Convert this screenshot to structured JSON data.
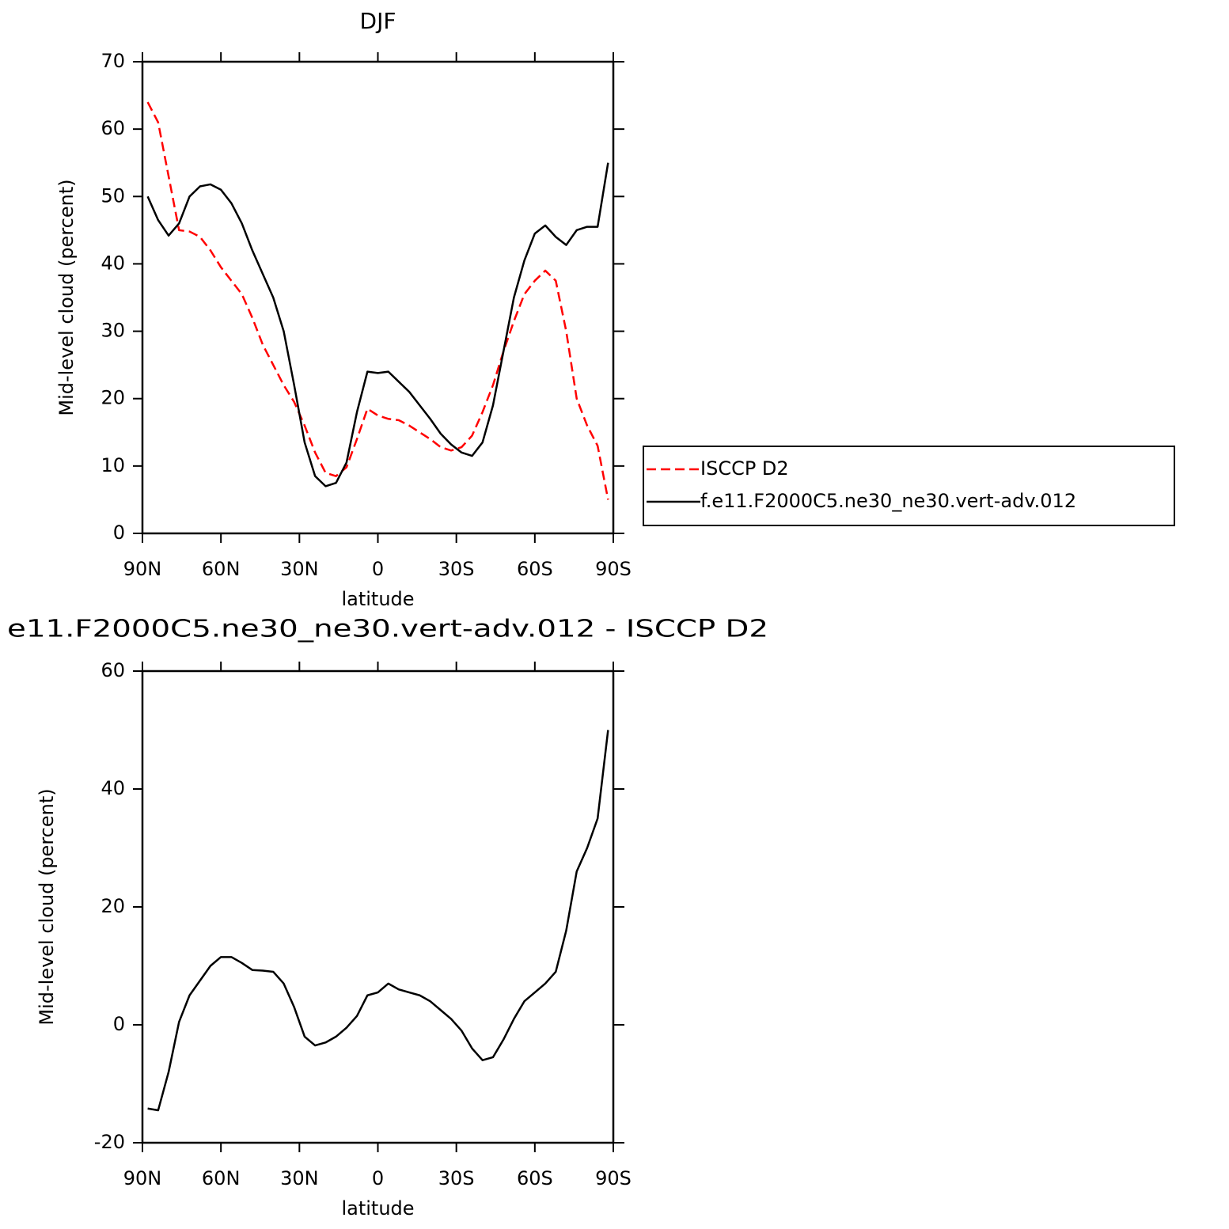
{
  "chart_data": [
    {
      "type": "line",
      "title": "DJF",
      "xlabel": "latitude",
      "ylabel": "Mid-level cloud (percent)",
      "x": [
        88,
        84,
        80,
        76,
        72,
        68,
        64,
        60,
        56,
        52,
        48,
        44,
        40,
        36,
        32,
        28,
        24,
        20,
        16,
        12,
        8,
        4,
        0,
        -4,
        -8,
        -12,
        -16,
        -20,
        -24,
        -28,
        -32,
        -36,
        -40,
        -44,
        -48,
        -52,
        -56,
        -60,
        -64,
        -68,
        -72,
        -76,
        -80,
        -84,
        -88
      ],
      "xlim": [
        90,
        -90
      ],
      "xticks": [
        {
          "value": 90,
          "label": "90N"
        },
        {
          "value": 60,
          "label": "60N"
        },
        {
          "value": 30,
          "label": "30N"
        },
        0,
        {
          "value": -30,
          "label": "30S"
        },
        {
          "value": -60,
          "label": "60S"
        },
        {
          "value": -90,
          "label": "90S"
        }
      ],
      "ylim": [
        0,
        70
      ],
      "yticks": [
        0,
        10,
        20,
        30,
        40,
        50,
        60,
        70
      ],
      "legend": "right",
      "series": [
        {
          "name": "ISCCP D2",
          "color": "#ff0000",
          "linestyle": "dashed",
          "values": [
            64,
            61,
            53,
            45,
            44.8,
            44,
            42,
            39.5,
            37.5,
            35.5,
            32,
            28,
            25,
            22,
            19.5,
            16,
            12,
            9,
            8.5,
            9.8,
            14,
            18.5,
            17.5,
            17,
            16.8,
            16,
            15,
            14,
            12.8,
            12.3,
            12.8,
            14.5,
            18,
            22,
            27,
            31.5,
            35.5,
            37.5,
            39,
            37.5,
            30,
            20,
            16,
            13,
            5
          ]
        },
        {
          "name": "f.e11.F2000C5.ne30_ne30.vert-adv.012",
          "color": "#000000",
          "linestyle": "solid",
          "values": [
            50,
            46.5,
            44.2,
            46,
            50,
            51.5,
            51.8,
            51,
            49,
            46,
            42,
            38.5,
            35,
            30,
            22,
            13.5,
            8.5,
            7,
            7.5,
            10.5,
            18,
            24,
            23.8,
            24,
            22.5,
            21,
            19,
            17,
            14.8,
            13.2,
            12,
            11.5,
            13.5,
            19,
            27,
            35,
            40.5,
            44.5,
            45.7,
            44,
            42.8,
            45,
            45.5,
            45.5,
            55
          ]
        }
      ]
    },
    {
      "type": "line",
      "title": "e11.F2000C5.ne30_ne30.vert-adv.012 - ISCCP D2",
      "xlabel": "latitude",
      "ylabel": "Mid-level cloud (percent)",
      "x": [
        88,
        84,
        80,
        76,
        72,
        68,
        64,
        60,
        56,
        52,
        48,
        44,
        40,
        36,
        32,
        28,
        24,
        20,
        16,
        12,
        8,
        4,
        0,
        -4,
        -8,
        -12,
        -16,
        -20,
        -24,
        -28,
        -32,
        -36,
        -40,
        -44,
        -48,
        -52,
        -56,
        -60,
        -64,
        -68,
        -72,
        -76,
        -80,
        -84,
        -88
      ],
      "xlim": [
        90,
        -90
      ],
      "xticks": [
        {
          "value": 90,
          "label": "90N"
        },
        {
          "value": 60,
          "label": "60N"
        },
        {
          "value": 30,
          "label": "30N"
        },
        0,
        {
          "value": -30,
          "label": "30S"
        },
        {
          "value": -60,
          "label": "60S"
        },
        {
          "value": -90,
          "label": "90S"
        }
      ],
      "ylim": [
        -20,
        60
      ],
      "yticks": [
        -20,
        0,
        20,
        40,
        60
      ],
      "color": "#000000",
      "values": [
        -14.2,
        -14.5,
        -8,
        0.5,
        5,
        7.5,
        10,
        11.5,
        11.5,
        10.5,
        9.3,
        9.2,
        9,
        7,
        3,
        -2,
        -3.5,
        -3,
        -2,
        -0.5,
        1.5,
        5,
        5.5,
        7,
        6,
        5.5,
        5,
        4,
        2.5,
        1,
        -1,
        -4,
        -6,
        -5.5,
        -2.5,
        1,
        4,
        5.5,
        7,
        9,
        16,
        26,
        30,
        35,
        50
      ]
    }
  ]
}
